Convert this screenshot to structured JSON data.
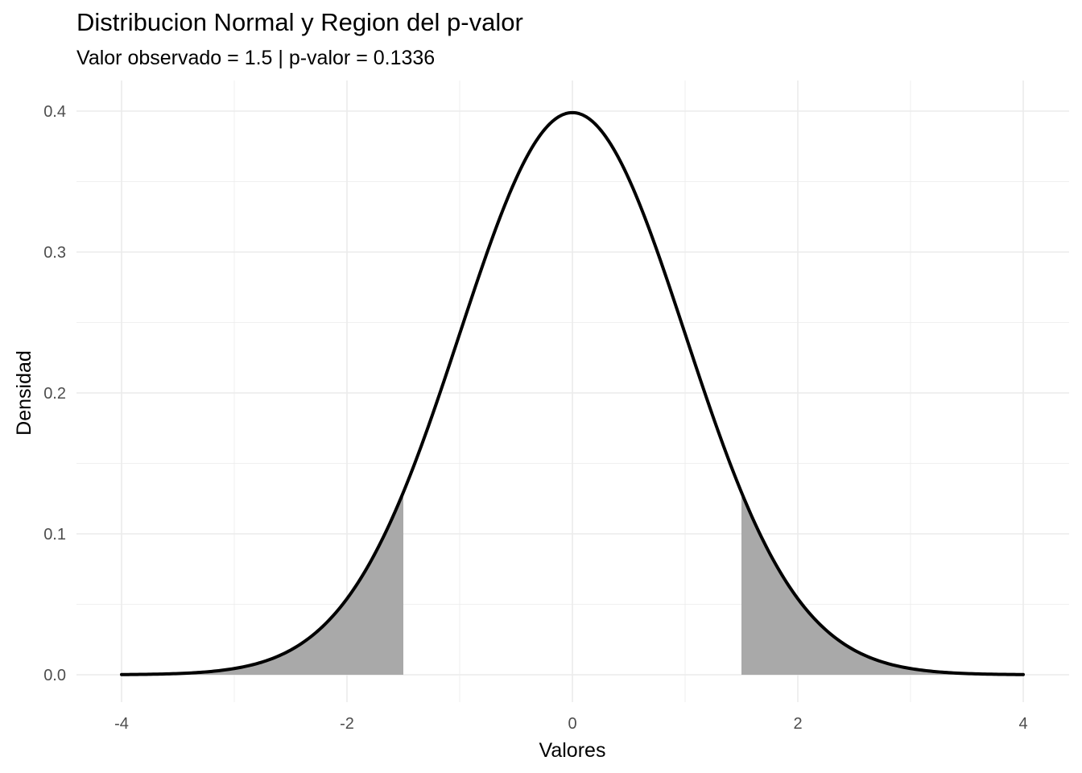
{
  "chart_data": {
    "type": "area",
    "title": "Distribucion Normal y Region del p-valor",
    "subtitle": "Valor observado = 1.5 | p-valor = 0.1336",
    "xlabel": "Valores",
    "ylabel": "Densidad",
    "xlim": [
      -4,
      4
    ],
    "ylim": [
      0,
      0.4
    ],
    "x_ticks": [
      -4,
      -2,
      0,
      2,
      4
    ],
    "x_tick_labels": [
      "-4",
      "-2",
      "0",
      "2",
      "4"
    ],
    "y_ticks": [
      0.0,
      0.1,
      0.2,
      0.3,
      0.4
    ],
    "y_tick_labels": [
      "0.0",
      "0.1",
      "0.2",
      "0.3",
      "0.4"
    ],
    "grid": true,
    "curve": {
      "distribution": "normal",
      "mean": 0,
      "sd": 1,
      "x": [
        -4,
        -3.5,
        -3,
        -2.5,
        -2,
        -1.5,
        -1,
        -0.5,
        0,
        0.5,
        1,
        1.5,
        2,
        2.5,
        3,
        3.5,
        4
      ],
      "y": [
        0.0001,
        0.0009,
        0.0044,
        0.0175,
        0.054,
        0.1295,
        0.242,
        0.3521,
        0.3989,
        0.3521,
        0.242,
        0.1295,
        0.054,
        0.0175,
        0.0044,
        0.0009,
        0.0001
      ]
    },
    "observed_value": 1.5,
    "p_value": 0.1336,
    "shaded_regions": [
      {
        "from": -4,
        "to": -1.5
      },
      {
        "from": 1.5,
        "to": 4
      }
    ],
    "colors": {
      "curve": "#000000",
      "shade": "#a9a9a9",
      "grid": "#ebebeb",
      "tick_text": "#4d4d4d"
    }
  }
}
